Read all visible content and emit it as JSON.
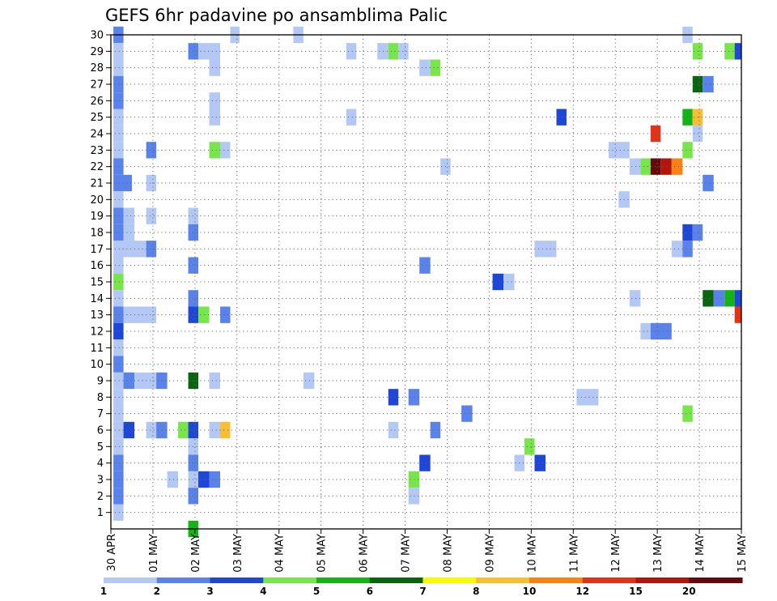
{
  "chart_data": {
    "type": "heatmap",
    "title": "GEFS 6hr padavine po ansamblima Palic",
    "xlabel": "",
    "ylabel": "",
    "x_ticks": [
      "30 APR",
      "01 MAY",
      "02 MAY",
      "03 MAY",
      "04 MAY",
      "05 MAY",
      "06 MAY",
      "07 MAY",
      "08 MAY",
      "09 MAY",
      "10 MAY",
      "11 MAY",
      "12 MAY",
      "13 MAY",
      "14 MAY",
      "15 MAY"
    ],
    "y_ticks": [
      1,
      2,
      3,
      4,
      5,
      6,
      7,
      8,
      9,
      10,
      11,
      12,
      13,
      14,
      15,
      16,
      17,
      18,
      19,
      20,
      21,
      22,
      23,
      24,
      25,
      26,
      27,
      28,
      29,
      30
    ],
    "x_range_days": [
      0,
      15
    ],
    "y_range": [
      0,
      30
    ],
    "time_step_hours": 6,
    "grid": true,
    "legend_position": "bottom",
    "legend": {
      "labels": [
        "1",
        "2",
        "3",
        "4",
        "5",
        "6",
        "7",
        "8",
        "10",
        "12",
        "15",
        "20"
      ],
      "colors": [
        "#b4c8f5",
        "#5a82eb",
        "#1e46d7",
        "#78e64b",
        "#14b414",
        "#0a6410",
        "#fafa00",
        "#fabe32",
        "#fa8214",
        "#e63214",
        "#b4140a",
        "#640a0a"
      ]
    },
    "cell_fields": [
      "member",
      "x_start_day",
      "x_end_day",
      "color"
    ],
    "cells": [
      [
        30,
        0.06,
        0.3,
        "#5a82eb"
      ],
      [
        30,
        2.84,
        3.06,
        "#b4c8f5"
      ],
      [
        30,
        4.34,
        4.58,
        "#b4c8f5"
      ],
      [
        30,
        13.6,
        13.84,
        "#b4c8f5"
      ],
      [
        29,
        0.06,
        0.3,
        "#b4c8f5"
      ],
      [
        29,
        1.84,
        2.08,
        "#5a82eb"
      ],
      [
        29,
        2.08,
        2.6,
        "#b4c8f5"
      ],
      [
        29,
        5.6,
        5.84,
        "#b4c8f5"
      ],
      [
        29,
        6.34,
        6.6,
        "#b4c8f5"
      ],
      [
        29,
        6.6,
        6.84,
        "#78e64b"
      ],
      [
        29,
        6.84,
        7.08,
        "#b4c8f5"
      ],
      [
        29,
        13.84,
        14.08,
        "#78e64b"
      ],
      [
        29,
        14.6,
        14.84,
        "#78e64b"
      ],
      [
        29,
        14.84,
        15.0,
        "#1e46d7"
      ],
      [
        28,
        0.06,
        0.3,
        "#b4c8f5"
      ],
      [
        28,
        2.34,
        2.6,
        "#b4c8f5"
      ],
      [
        28,
        7.34,
        7.6,
        "#b4c8f5"
      ],
      [
        28,
        7.6,
        7.84,
        "#78e64b"
      ],
      [
        27,
        0.06,
        0.3,
        "#5a82eb"
      ],
      [
        27,
        13.84,
        14.08,
        "#0a6410"
      ],
      [
        27,
        14.08,
        14.34,
        "#5a82eb"
      ],
      [
        26,
        0.06,
        0.3,
        "#5a82eb"
      ],
      [
        26,
        2.34,
        2.6,
        "#b4c8f5"
      ],
      [
        25,
        0.06,
        0.3,
        "#b4c8f5"
      ],
      [
        25,
        2.34,
        2.6,
        "#b4c8f5"
      ],
      [
        25,
        5.6,
        5.84,
        "#b4c8f5"
      ],
      [
        25,
        10.6,
        10.84,
        "#1e46d7"
      ],
      [
        25,
        13.6,
        13.84,
        "#14b414"
      ],
      [
        25,
        13.84,
        14.08,
        "#fabe32"
      ],
      [
        24,
        0.06,
        0.3,
        "#b4c8f5"
      ],
      [
        24,
        12.84,
        13.08,
        "#e63214"
      ],
      [
        24,
        13.84,
        14.08,
        "#b4c8f5"
      ],
      [
        23,
        0.06,
        0.3,
        "#b4c8f5"
      ],
      [
        23,
        0.84,
        1.08,
        "#5a82eb"
      ],
      [
        23,
        2.34,
        2.6,
        "#78e64b"
      ],
      [
        23,
        2.6,
        2.84,
        "#b4c8f5"
      ],
      [
        23,
        11.84,
        12.34,
        "#b4c8f5"
      ],
      [
        23,
        13.6,
        13.84,
        "#78e64b"
      ],
      [
        22,
        0.06,
        0.3,
        "#5a82eb"
      ],
      [
        22,
        7.84,
        8.08,
        "#b4c8f5"
      ],
      [
        22,
        12.34,
        12.6,
        "#b4c8f5"
      ],
      [
        22,
        12.6,
        12.84,
        "#78e64b"
      ],
      [
        22,
        12.84,
        13.08,
        "#640a0a"
      ],
      [
        22,
        13.08,
        13.34,
        "#b4140a"
      ],
      [
        22,
        13.34,
        13.6,
        "#fa8214"
      ],
      [
        21,
        0.06,
        0.5,
        "#5a82eb"
      ],
      [
        21,
        0.84,
        1.08,
        "#b4c8f5"
      ],
      [
        21,
        14.08,
        14.34,
        "#5a82eb"
      ],
      [
        20,
        0.06,
        0.3,
        "#b4c8f5"
      ],
      [
        20,
        12.08,
        12.34,
        "#b4c8f5"
      ],
      [
        19,
        0.06,
        0.3,
        "#5a82eb"
      ],
      [
        19,
        0.3,
        0.56,
        "#b4c8f5"
      ],
      [
        19,
        0.84,
        1.08,
        "#b4c8f5"
      ],
      [
        19,
        1.84,
        2.08,
        "#b4c8f5"
      ],
      [
        18,
        0.06,
        0.3,
        "#5a82eb"
      ],
      [
        18,
        0.3,
        0.56,
        "#b4c8f5"
      ],
      [
        18,
        1.84,
        2.08,
        "#5a82eb"
      ],
      [
        18,
        13.6,
        13.84,
        "#1e46d7"
      ],
      [
        18,
        13.84,
        14.08,
        "#5a82eb"
      ],
      [
        17,
        0.06,
        0.84,
        "#b4c8f5"
      ],
      [
        17,
        0.84,
        1.08,
        "#5a82eb"
      ],
      [
        17,
        10.08,
        10.6,
        "#b4c8f5"
      ],
      [
        17,
        13.34,
        13.6,
        "#b4c8f5"
      ],
      [
        17,
        13.6,
        13.84,
        "#5a82eb"
      ],
      [
        16,
        0.06,
        0.3,
        "#b4c8f5"
      ],
      [
        16,
        1.84,
        2.08,
        "#5a82eb"
      ],
      [
        16,
        7.34,
        7.6,
        "#5a82eb"
      ],
      [
        15,
        0.06,
        0.3,
        "#78e64b"
      ],
      [
        15,
        9.08,
        9.34,
        "#1e46d7"
      ],
      [
        15,
        9.34,
        9.6,
        "#b4c8f5"
      ],
      [
        14,
        0.06,
        0.3,
        "#b4c8f5"
      ],
      [
        14,
        1.84,
        2.08,
        "#5a82eb"
      ],
      [
        14,
        12.34,
        12.6,
        "#b4c8f5"
      ],
      [
        14,
        14.08,
        14.34,
        "#0a6410"
      ],
      [
        14,
        14.34,
        14.6,
        "#5a82eb"
      ],
      [
        14,
        14.6,
        14.84,
        "#14b414"
      ],
      [
        14,
        14.84,
        15.0,
        "#1e46d7"
      ],
      [
        13,
        0.06,
        0.3,
        "#5a82eb"
      ],
      [
        13,
        0.3,
        1.08,
        "#b4c8f5"
      ],
      [
        13,
        1.84,
        2.08,
        "#1e46d7"
      ],
      [
        13,
        2.08,
        2.34,
        "#78e64b"
      ],
      [
        13,
        2.6,
        2.84,
        "#5a82eb"
      ],
      [
        13,
        14.84,
        15.0,
        "#e63214"
      ],
      [
        12,
        0.06,
        0.3,
        "#1e46d7"
      ],
      [
        12,
        12.6,
        12.84,
        "#b4c8f5"
      ],
      [
        12,
        12.84,
        13.34,
        "#5a82eb"
      ],
      [
        11,
        0.06,
        0.3,
        "#b4c8f5"
      ],
      [
        10,
        0.06,
        0.3,
        "#5a82eb"
      ],
      [
        9,
        0.06,
        0.3,
        "#b4c8f5"
      ],
      [
        9,
        0.3,
        0.56,
        "#5a82eb"
      ],
      [
        9,
        0.56,
        1.08,
        "#b4c8f5"
      ],
      [
        9,
        1.08,
        1.34,
        "#5a82eb"
      ],
      [
        9,
        1.84,
        2.08,
        "#0a6410"
      ],
      [
        9,
        2.34,
        2.6,
        "#b4c8f5"
      ],
      [
        9,
        4.58,
        4.84,
        "#b4c8f5"
      ],
      [
        8,
        0.06,
        0.3,
        "#b4c8f5"
      ],
      [
        8,
        6.6,
        6.84,
        "#1e46d7"
      ],
      [
        8,
        7.08,
        7.34,
        "#5a82eb"
      ],
      [
        8,
        11.08,
        11.6,
        "#b4c8f5"
      ],
      [
        7,
        0.06,
        0.3,
        "#b4c8f5"
      ],
      [
        7,
        8.34,
        8.6,
        "#5a82eb"
      ],
      [
        7,
        13.6,
        13.84,
        "#78e64b"
      ],
      [
        6,
        0.06,
        0.3,
        "#b4c8f5"
      ],
      [
        6,
        0.3,
        0.56,
        "#1e46d7"
      ],
      [
        6,
        0.84,
        1.08,
        "#b4c8f5"
      ],
      [
        6,
        1.08,
        1.34,
        "#5a82eb"
      ],
      [
        6,
        1.6,
        1.84,
        "#78e64b"
      ],
      [
        6,
        1.84,
        2.08,
        "#1e46d7"
      ],
      [
        6,
        2.34,
        2.6,
        "#b4c8f5"
      ],
      [
        6,
        2.6,
        2.84,
        "#fabe32"
      ],
      [
        6,
        6.6,
        6.84,
        "#b4c8f5"
      ],
      [
        6,
        7.6,
        7.84,
        "#5a82eb"
      ],
      [
        5,
        0.06,
        0.3,
        "#b4c8f5"
      ],
      [
        5,
        1.84,
        2.08,
        "#b4c8f5"
      ],
      [
        5,
        9.84,
        10.08,
        "#78e64b"
      ],
      [
        4,
        0.06,
        0.3,
        "#5a82eb"
      ],
      [
        4,
        1.84,
        2.08,
        "#5a82eb"
      ],
      [
        4,
        7.34,
        7.6,
        "#1e46d7"
      ],
      [
        4,
        9.6,
        9.84,
        "#b4c8f5"
      ],
      [
        4,
        10.08,
        10.34,
        "#1e46d7"
      ],
      [
        3,
        0.06,
        0.3,
        "#5a82eb"
      ],
      [
        3,
        1.34,
        1.6,
        "#b4c8f5"
      ],
      [
        3,
        1.84,
        2.08,
        "#b4c8f5"
      ],
      [
        3,
        2.08,
        2.34,
        "#1e46d7"
      ],
      [
        3,
        2.34,
        2.6,
        "#5a82eb"
      ],
      [
        3,
        7.08,
        7.34,
        "#78e64b"
      ],
      [
        2,
        0.06,
        0.3,
        "#5a82eb"
      ],
      [
        2,
        1.84,
        2.08,
        "#5a82eb"
      ],
      [
        2,
        7.08,
        7.34,
        "#b4c8f5"
      ],
      [
        1,
        0.06,
        0.3,
        "#b4c8f5"
      ],
      [
        0,
        1.84,
        2.08,
        "#14b414"
      ]
    ]
  }
}
